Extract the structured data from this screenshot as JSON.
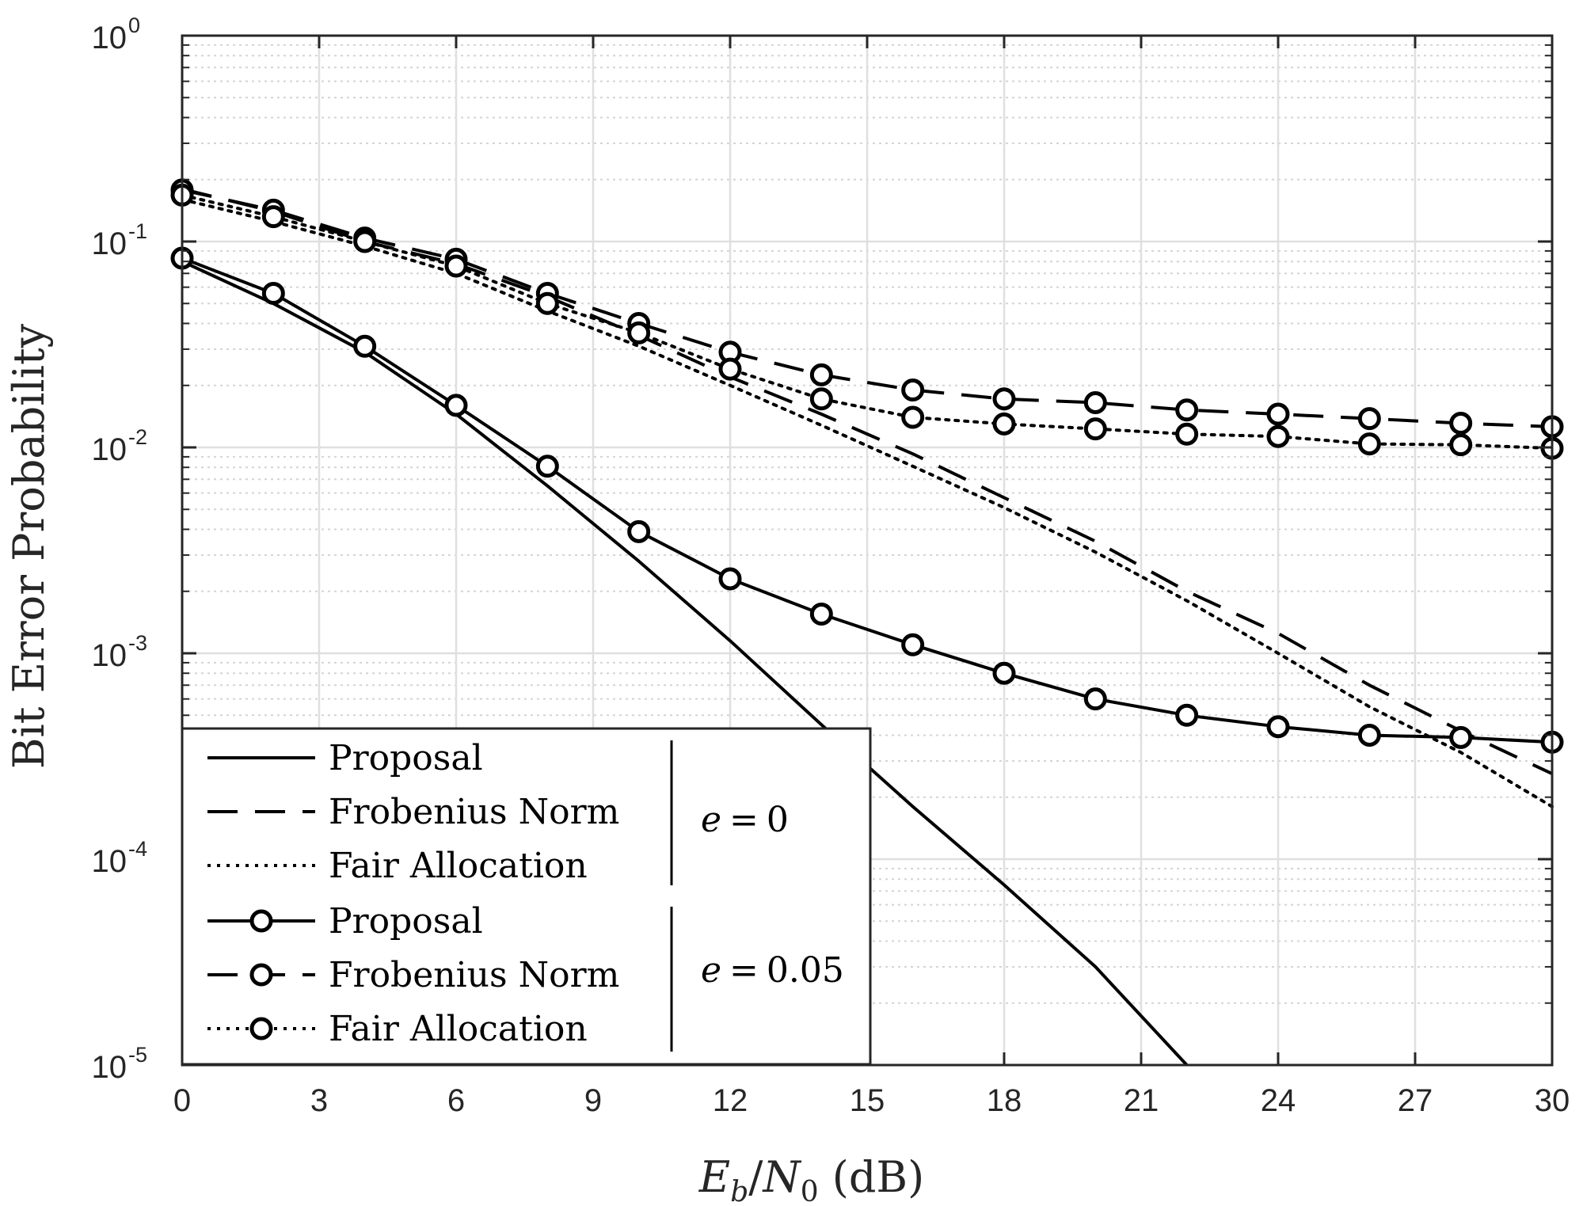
{
  "chart_data": {
    "type": "line",
    "xlabel": "E_b/N_0 (dB)",
    "xlabel_parts": {
      "E": "E",
      "b": "b",
      "slash": "/",
      "N": "N",
      "zero": "0",
      "unit": " (dB)"
    },
    "ylabel": "Bit Error Probability",
    "x_scale": "linear",
    "y_scale": "log",
    "xlim": [
      0,
      30
    ],
    "ylim": [
      1e-05,
      1
    ],
    "x_ticks": [
      0,
      3,
      6,
      9,
      12,
      15,
      18,
      21,
      24,
      27,
      30
    ],
    "x_tick_labels": [
      "0",
      "3",
      "6",
      "9",
      "12",
      "15",
      "18",
      "21",
      "24",
      "27",
      "30"
    ],
    "y_ticks": [
      {
        "value": 1e-05,
        "base": "10",
        "exp": "-5"
      },
      {
        "value": 0.0001,
        "base": "10",
        "exp": "-4"
      },
      {
        "value": 0.001,
        "base": "10",
        "exp": "-3"
      },
      {
        "value": 0.01,
        "base": "10",
        "exp": "-2"
      },
      {
        "value": 0.1,
        "base": "10",
        "exp": "-1"
      },
      {
        "value": 1,
        "base": "10",
        "exp": "0"
      }
    ],
    "grid": true,
    "minor_grid": true,
    "series": [
      {
        "name": "Proposal",
        "group": "e = 0",
        "line_style": "solid",
        "marker": "none",
        "x": [
          0,
          2,
          4,
          6,
          8,
          10,
          12,
          14,
          16,
          18,
          20,
          22
        ],
        "y": [
          0.08,
          0.05,
          0.029,
          0.0145,
          0.0065,
          0.0028,
          0.00115,
          0.00045,
          0.00018,
          7.5e-05,
          3e-05,
          1e-05
        ]
      },
      {
        "name": "Frobenius Norm",
        "group": "e = 0",
        "line_style": "dashed",
        "marker": "none",
        "x": [
          0,
          2,
          4,
          6,
          8,
          10,
          12,
          14,
          16,
          18,
          20,
          22,
          24,
          26,
          28,
          30
        ],
        "y": [
          0.18,
          0.14,
          0.1,
          0.078,
          0.054,
          0.035,
          0.022,
          0.0145,
          0.0093,
          0.0057,
          0.0035,
          0.002,
          0.00125,
          0.0007,
          0.00042,
          0.00026
        ]
      },
      {
        "name": "Fair Allocation",
        "group": "e = 0",
        "line_style": "dotted",
        "marker": "none",
        "x": [
          0,
          2,
          4,
          6,
          8,
          10,
          12,
          14,
          16,
          18,
          20,
          22,
          24,
          26,
          28,
          30
        ],
        "y": [
          0.16,
          0.125,
          0.095,
          0.07,
          0.046,
          0.031,
          0.02,
          0.0128,
          0.0081,
          0.0051,
          0.0031,
          0.0018,
          0.001,
          0.00055,
          0.00033,
          0.00018
        ]
      },
      {
        "name": "Proposal",
        "group": "e = 0.05",
        "line_style": "solid",
        "marker": "circle",
        "x": [
          0,
          2,
          4,
          6,
          8,
          10,
          12,
          14,
          16,
          18,
          20,
          22,
          24,
          26,
          28,
          30
        ],
        "y": [
          0.083,
          0.056,
          0.031,
          0.016,
          0.0081,
          0.0039,
          0.0023,
          0.00155,
          0.0011,
          0.0008,
          0.0006,
          0.0005,
          0.00044,
          0.0004,
          0.00039,
          0.00037
        ]
      },
      {
        "name": "Frobenius Norm",
        "group": "e = 0.05",
        "line_style": "dashed",
        "marker": "circle",
        "x": [
          0,
          2,
          4,
          6,
          8,
          10,
          12,
          14,
          16,
          18,
          20,
          22,
          24,
          26,
          28,
          30
        ],
        "y": [
          0.178,
          0.142,
          0.104,
          0.082,
          0.056,
          0.04,
          0.029,
          0.0225,
          0.019,
          0.0172,
          0.0165,
          0.0152,
          0.0145,
          0.0138,
          0.0131,
          0.0126
        ]
      },
      {
        "name": "Fair Allocation",
        "group": "e = 0.05",
        "line_style": "dotted",
        "marker": "circle",
        "x": [
          0,
          2,
          4,
          6,
          8,
          10,
          12,
          14,
          16,
          18,
          20,
          22,
          24,
          26,
          28,
          30
        ],
        "y": [
          0.168,
          0.132,
          0.1,
          0.076,
          0.05,
          0.036,
          0.024,
          0.0172,
          0.014,
          0.013,
          0.0123,
          0.0116,
          0.0113,
          0.0104,
          0.0103,
          0.0099
        ]
      }
    ],
    "legend": {
      "position": "lower-left",
      "entries": [
        {
          "label": "Proposal",
          "series": 0
        },
        {
          "label": "Frobenius Norm",
          "series": 1
        },
        {
          "label": "Fair Allocation",
          "series": 2
        },
        {
          "label": "Proposal",
          "series": 3
        },
        {
          "label": "Frobenius Norm",
          "series": 4
        },
        {
          "label": "Fair Allocation",
          "series": 5
        }
      ],
      "group_labels": [
        {
          "label": "e = 0",
          "var": "e",
          "eq": "=",
          "val": "0"
        },
        {
          "label": "e = 0.05",
          "var": "e",
          "eq": "=",
          "val": "0.05"
        }
      ]
    },
    "colors": {
      "line": "#000000",
      "grid": "#dfdfdf",
      "axis": "#262626",
      "background": "#ffffff"
    }
  }
}
